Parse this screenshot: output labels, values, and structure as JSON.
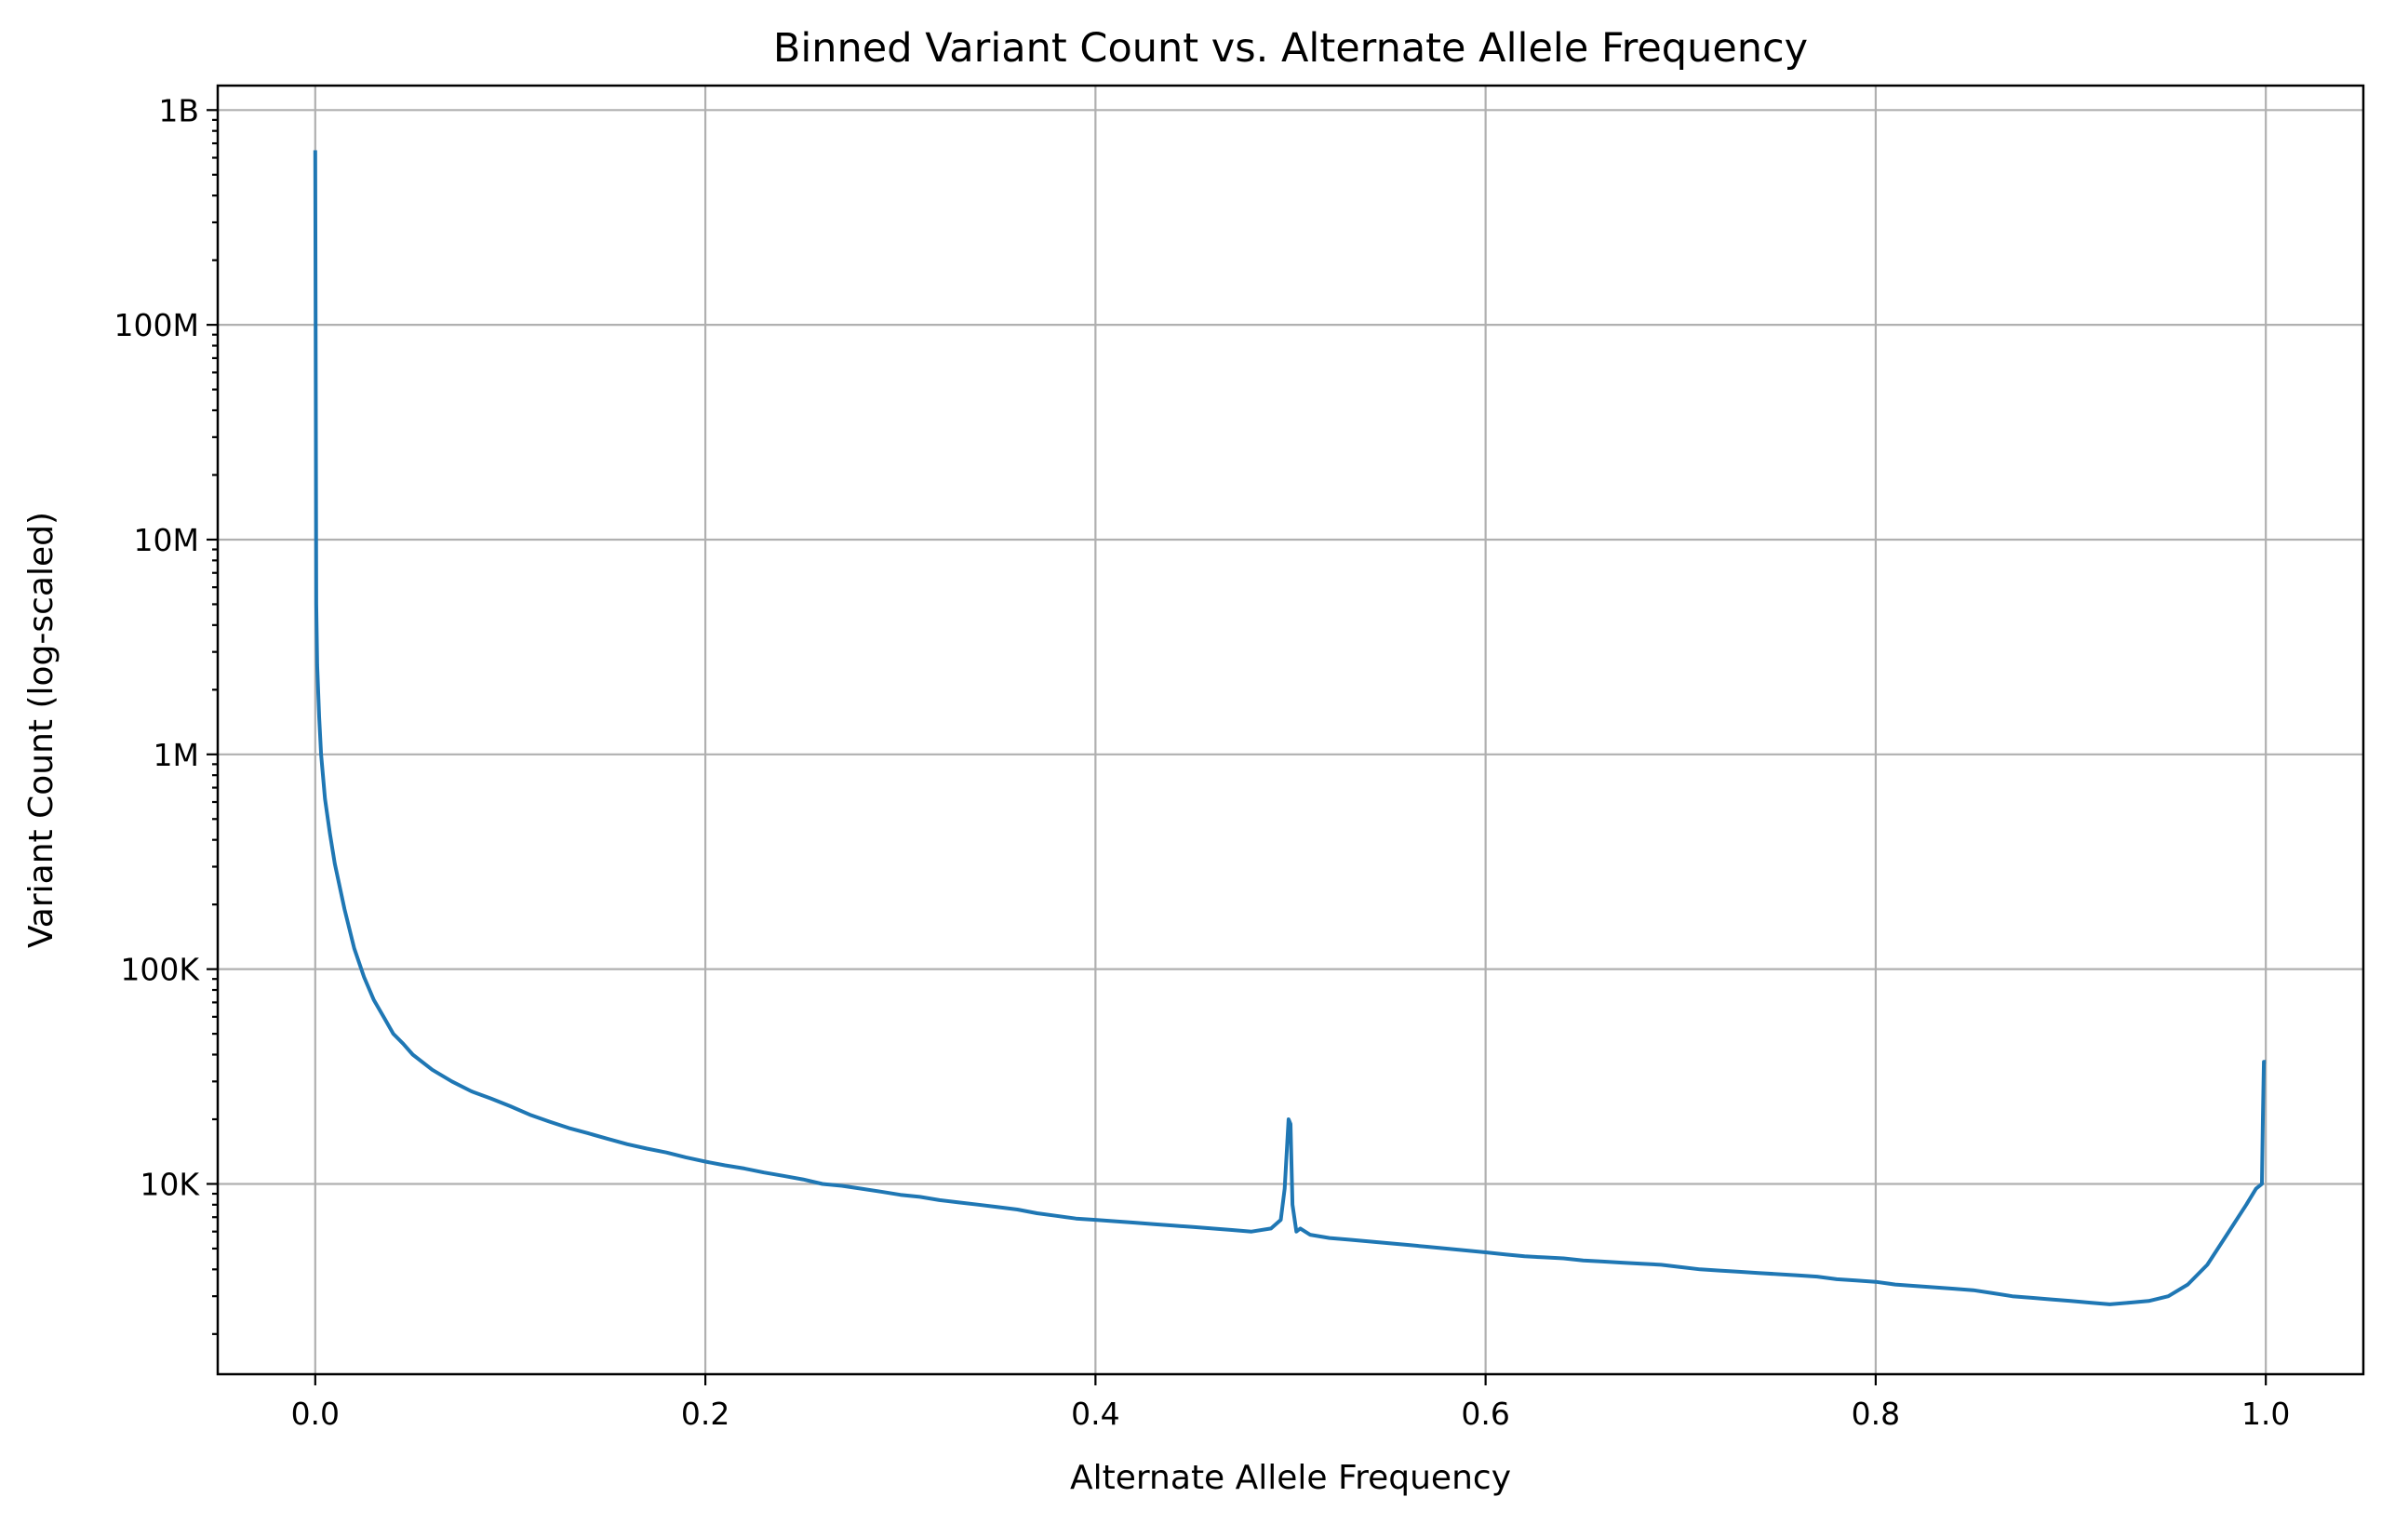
{
  "chart_data": {
    "type": "line",
    "title": "Binned Variant Count vs. Alternate Allele Frequency",
    "xlabel": "Alternate Allele Frequency",
    "ylabel": "Variant Count (log-scaled)",
    "xlim": [
      -0.05,
      1.05
    ],
    "ylim": [
      1300,
      1300000000
    ],
    "y_scale": "log",
    "grid": true,
    "x_ticks": [
      {
        "value": 0.0,
        "label": "0.0"
      },
      {
        "value": 0.2,
        "label": "0.2"
      },
      {
        "value": 0.4,
        "label": "0.4"
      },
      {
        "value": 0.6,
        "label": "0.6"
      },
      {
        "value": 0.8,
        "label": "0.8"
      },
      {
        "value": 1.0,
        "label": "1.0"
      }
    ],
    "y_ticks": [
      {
        "value": 10000,
        "label": "10K"
      },
      {
        "value": 100000,
        "label": "100K"
      },
      {
        "value": 1000000,
        "label": "1M"
      },
      {
        "value": 10000000,
        "label": "10M"
      },
      {
        "value": 100000000,
        "label": "100M"
      },
      {
        "value": 1000000000,
        "label": "1B"
      }
    ],
    "series": [
      {
        "color": "#1f77b4",
        "x": [
          0.0,
          0.0005,
          0.001,
          0.002,
          0.003,
          0.005,
          0.0075,
          0.01,
          0.015,
          0.02,
          0.025,
          0.03,
          0.035,
          0.04,
          0.045,
          0.05,
          0.06,
          0.07,
          0.08,
          0.09,
          0.1,
          0.11,
          0.12,
          0.13,
          0.14,
          0.15,
          0.16,
          0.17,
          0.18,
          0.19,
          0.2,
          0.21,
          0.22,
          0.23,
          0.24,
          0.25,
          0.26,
          0.27,
          0.28,
          0.29,
          0.3,
          0.31,
          0.32,
          0.33,
          0.34,
          0.35,
          0.36,
          0.37,
          0.38,
          0.39,
          0.4,
          0.41,
          0.42,
          0.43,
          0.44,
          0.45,
          0.46,
          0.47,
          0.48,
          0.49,
          0.495,
          0.497,
          0.499,
          0.5,
          0.501,
          0.503,
          0.505,
          0.51,
          0.52,
          0.53,
          0.54,
          0.55,
          0.56,
          0.57,
          0.58,
          0.59,
          0.6,
          0.61,
          0.62,
          0.63,
          0.64,
          0.65,
          0.66,
          0.67,
          0.68,
          0.69,
          0.7,
          0.71,
          0.72,
          0.73,
          0.74,
          0.75,
          0.76,
          0.77,
          0.78,
          0.79,
          0.8,
          0.81,
          0.82,
          0.83,
          0.84,
          0.85,
          0.86,
          0.87,
          0.88,
          0.89,
          0.9,
          0.91,
          0.92,
          0.93,
          0.94,
          0.95,
          0.96,
          0.97,
          0.98,
          0.99,
          0.995,
          0.998,
          0.9985,
          0.999,
          1.0
        ],
        "y": [
          650000000,
          5000000,
          2600000,
          1500000,
          1000000,
          620000,
          430000,
          310000,
          190000,
          125000,
          92000,
          72000,
          60000,
          50000,
          45000,
          40000,
          34000,
          30000,
          27000,
          25000,
          23000,
          21000,
          19500,
          18200,
          17200,
          16200,
          15300,
          14600,
          14000,
          13300,
          12700,
          12200,
          11800,
          11300,
          10900,
          10500,
          10000,
          9800,
          9500,
          9200,
          8900,
          8700,
          8400,
          8200,
          8000,
          7800,
          7600,
          7300,
          7100,
          6900,
          6800,
          6700,
          6600,
          6500,
          6400,
          6300,
          6200,
          6100,
          6000,
          6200,
          6800,
          9500,
          20000,
          19000,
          8000,
          6000,
          6200,
          5800,
          5600,
          5500,
          5400,
          5300,
          5200,
          5100,
          5000,
          4900,
          4800,
          4700,
          4600,
          4550,
          4500,
          4400,
          4350,
          4300,
          4250,
          4200,
          4100,
          4000,
          3950,
          3900,
          3850,
          3800,
          3750,
          3700,
          3600,
          3550,
          3500,
          3400,
          3350,
          3300,
          3250,
          3200,
          3100,
          3000,
          2950,
          2900,
          2850,
          2800,
          2750,
          2800,
          2850,
          3000,
          3400,
          4200,
          5800,
          8000,
          9500,
          10000,
          20000,
          37000,
          37000
        ]
      }
    ]
  }
}
